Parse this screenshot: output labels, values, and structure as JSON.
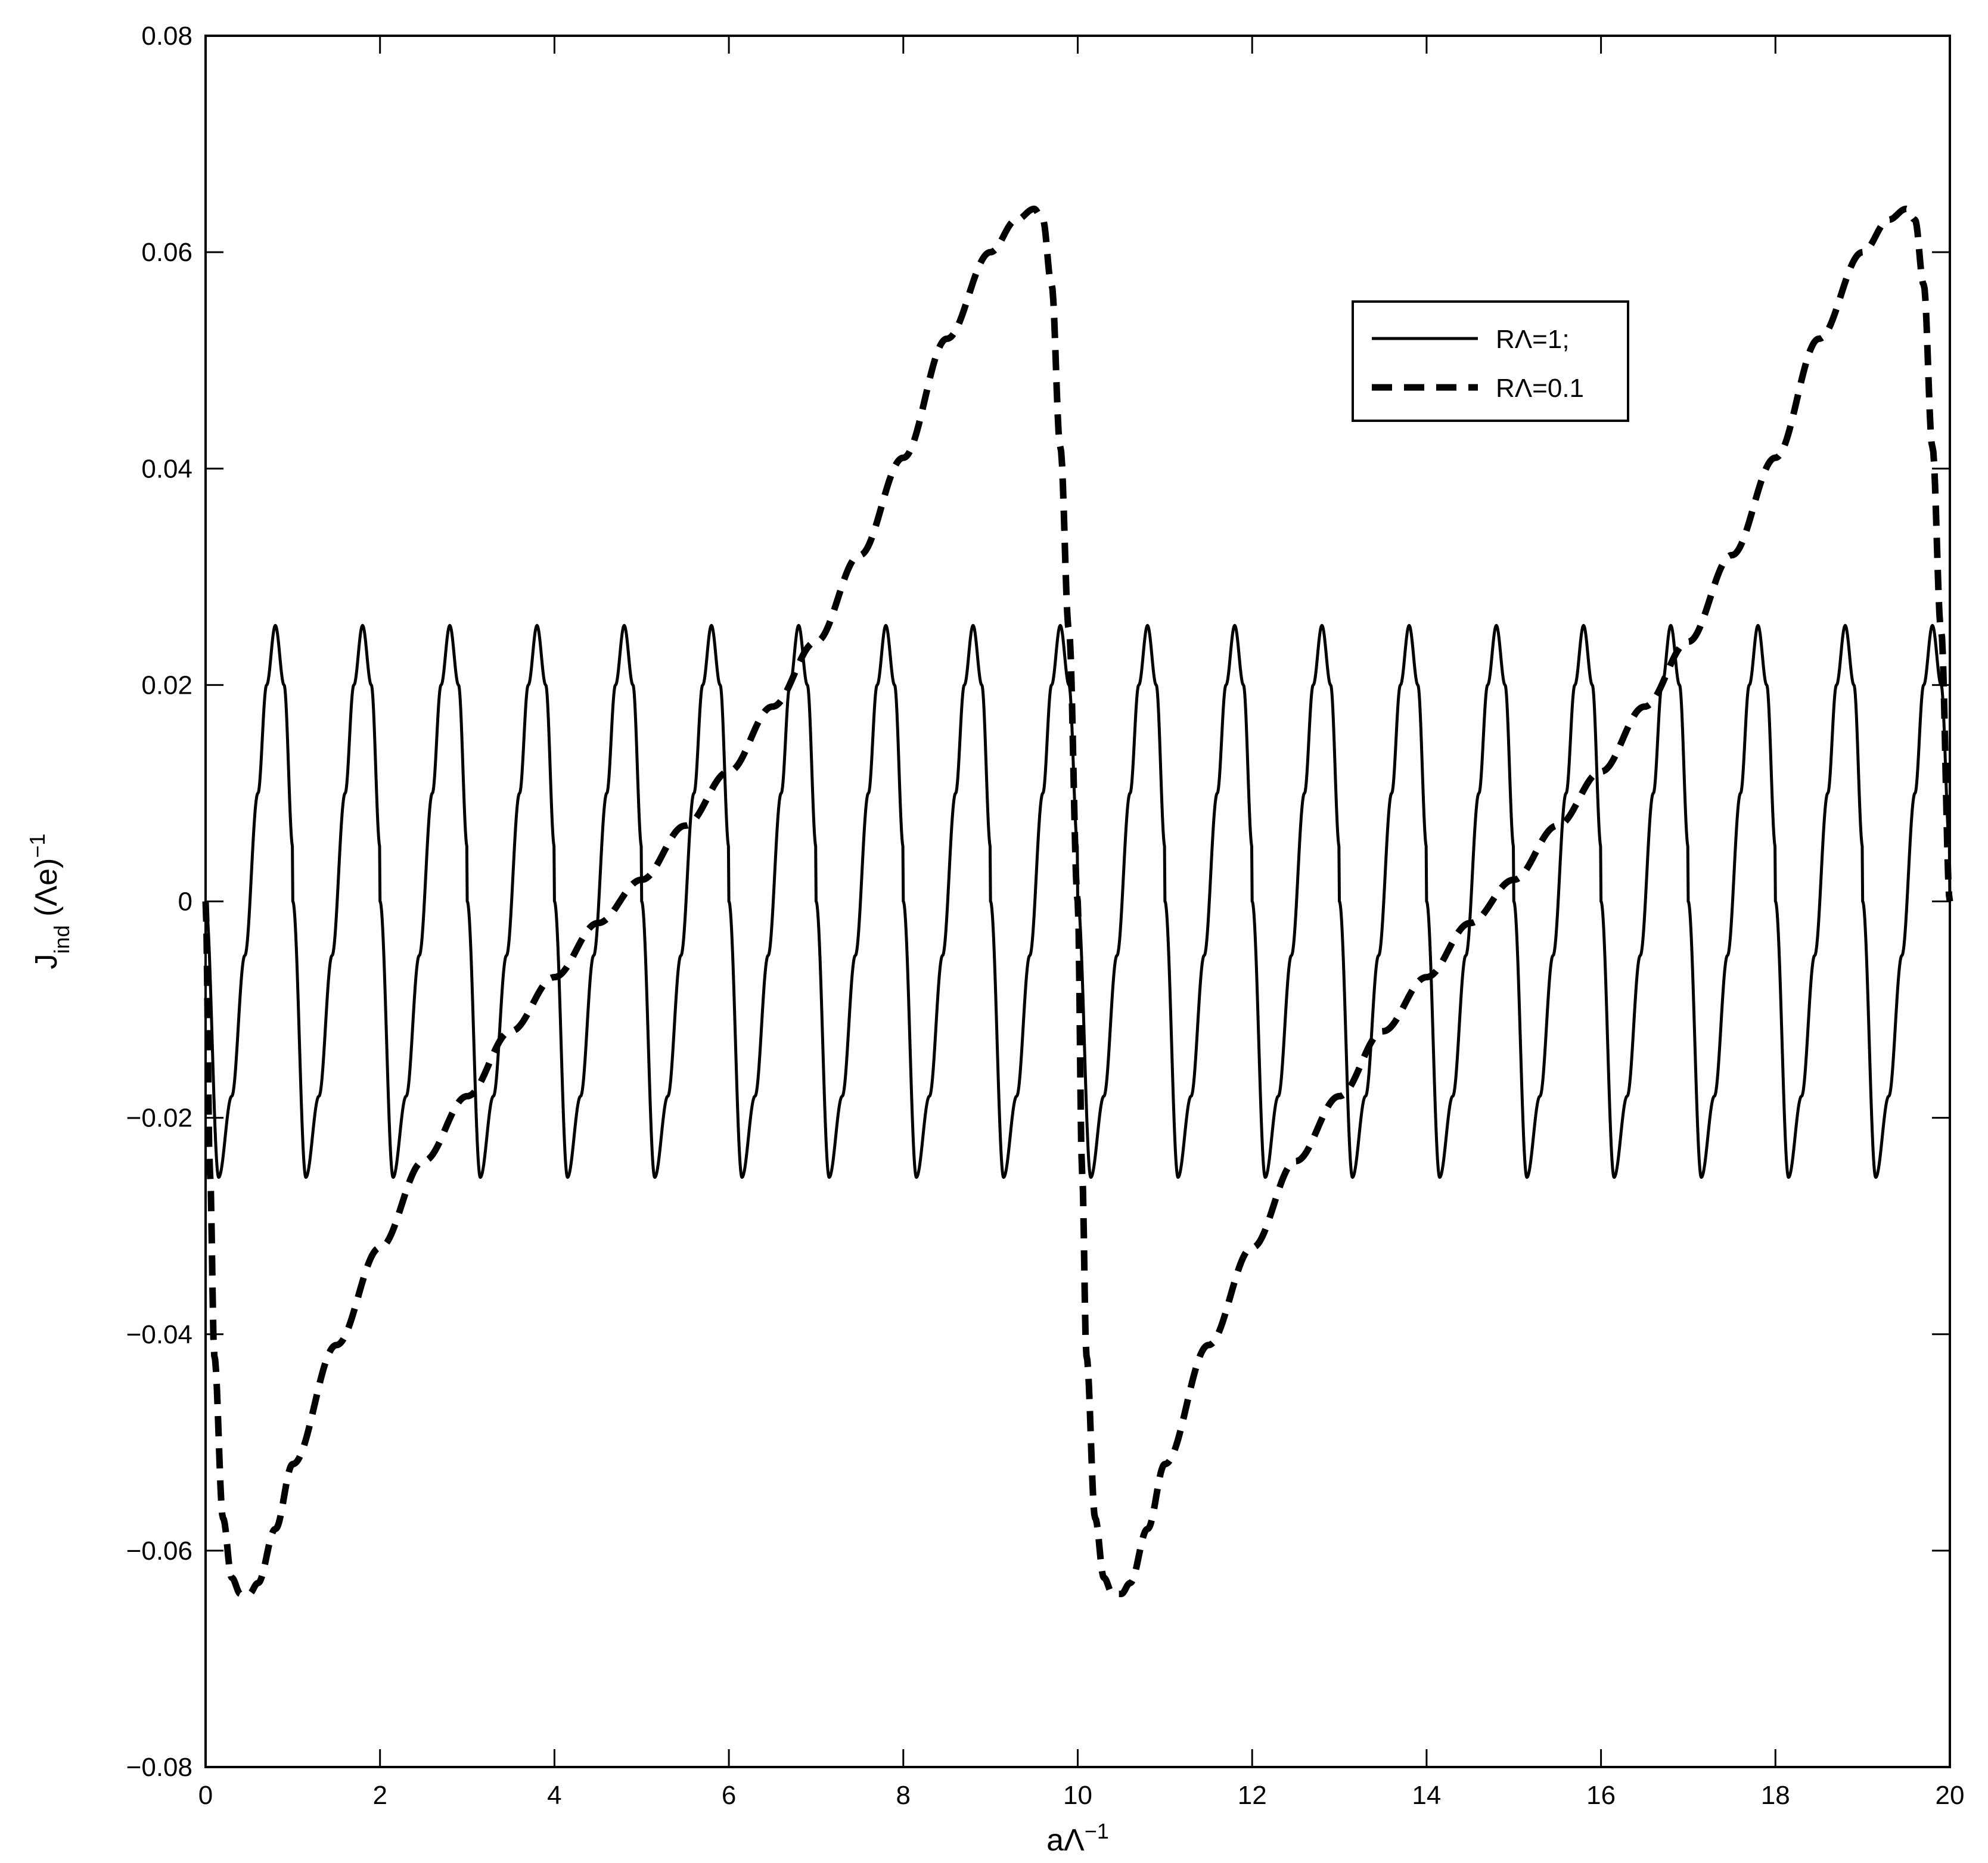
{
  "chart_data": {
    "type": "line",
    "title": "",
    "xlabel": "aΛ",
    "xlabel_sup": "−1",
    "ylabel_main": "J",
    "ylabel_sub": "ind",
    "ylabel_rest": " (Λe)",
    "ylabel_sup": "−1",
    "xlim": [
      0,
      20
    ],
    "ylim": [
      -0.08,
      0.08
    ],
    "x_ticks": [
      0,
      2,
      4,
      6,
      8,
      10,
      12,
      14,
      16,
      18,
      20
    ],
    "x_tick_labels": [
      "0",
      "2",
      "4",
      "6",
      "8",
      "10",
      "12",
      "14",
      "16",
      "18",
      "20"
    ],
    "y_ticks": [
      -0.08,
      -0.06,
      -0.04,
      -0.02,
      0,
      0.02,
      0.04,
      0.06,
      0.08
    ],
    "y_tick_labels": [
      "−0.08",
      "−0.06",
      "−0.04",
      "−0.02",
      "0",
      "0.02",
      "0.04",
      "0.06",
      "0.08"
    ],
    "grid": false,
    "legend_position": "top-right",
    "series": [
      {
        "name": "RΛ=1;",
        "style": "solid",
        "color": "#000000",
        "period": 1,
        "amplitude": 0.0255,
        "peaks_x": [
          0.8,
          1.8,
          2.8,
          3.8,
          4.8,
          5.8,
          6.8,
          7.8,
          8.8,
          9.8,
          10.8,
          11.8,
          12.8,
          13.8,
          14.8,
          15.8,
          16.8,
          17.8,
          18.8,
          19.8
        ],
        "troughs_x": [
          0.15,
          1.15,
          2.15,
          3.15,
          4.15,
          5.15,
          6.15,
          7.15,
          8.15,
          9.15,
          10.15,
          11.15,
          12.15,
          13.15,
          14.15,
          15.15,
          16.15,
          17.15,
          18.15,
          19.15
        ],
        "x": [
          0,
          0.15,
          0.3,
          0.45,
          0.6,
          0.7,
          0.8,
          0.9,
          1.0,
          1.15
        ],
        "y": [
          0,
          -0.0255,
          -0.018,
          -0.005,
          0.01,
          0.02,
          0.0255,
          0.02,
          0.005,
          -0.0255
        ]
      },
      {
        "name": "RΛ=0.1",
        "style": "dashed",
        "color": "#000000",
        "period": 10,
        "x": [
          0,
          0.05,
          0.1,
          0.2,
          0.3,
          0.4,
          0.5,
          0.6,
          0.8,
          1.0,
          1.5,
          2.0,
          2.5,
          3.0,
          3.5,
          4.0,
          4.5,
          5.0,
          5.5,
          6.0,
          6.5,
          7.0,
          7.5,
          8.0,
          8.5,
          9.0,
          9.3,
          9.5,
          9.6,
          9.7,
          9.8,
          9.9,
          10.0
        ],
        "y": [
          0,
          -0.025,
          -0.042,
          -0.057,
          -0.0625,
          -0.064,
          -0.064,
          -0.063,
          -0.058,
          -0.052,
          -0.041,
          -0.032,
          -0.024,
          -0.018,
          -0.012,
          -0.007,
          -0.002,
          0.002,
          0.007,
          0.012,
          0.018,
          0.024,
          0.032,
          0.041,
          0.052,
          0.06,
          0.063,
          0.064,
          0.063,
          0.057,
          0.042,
          0.025,
          0.0
        ]
      }
    ]
  }
}
